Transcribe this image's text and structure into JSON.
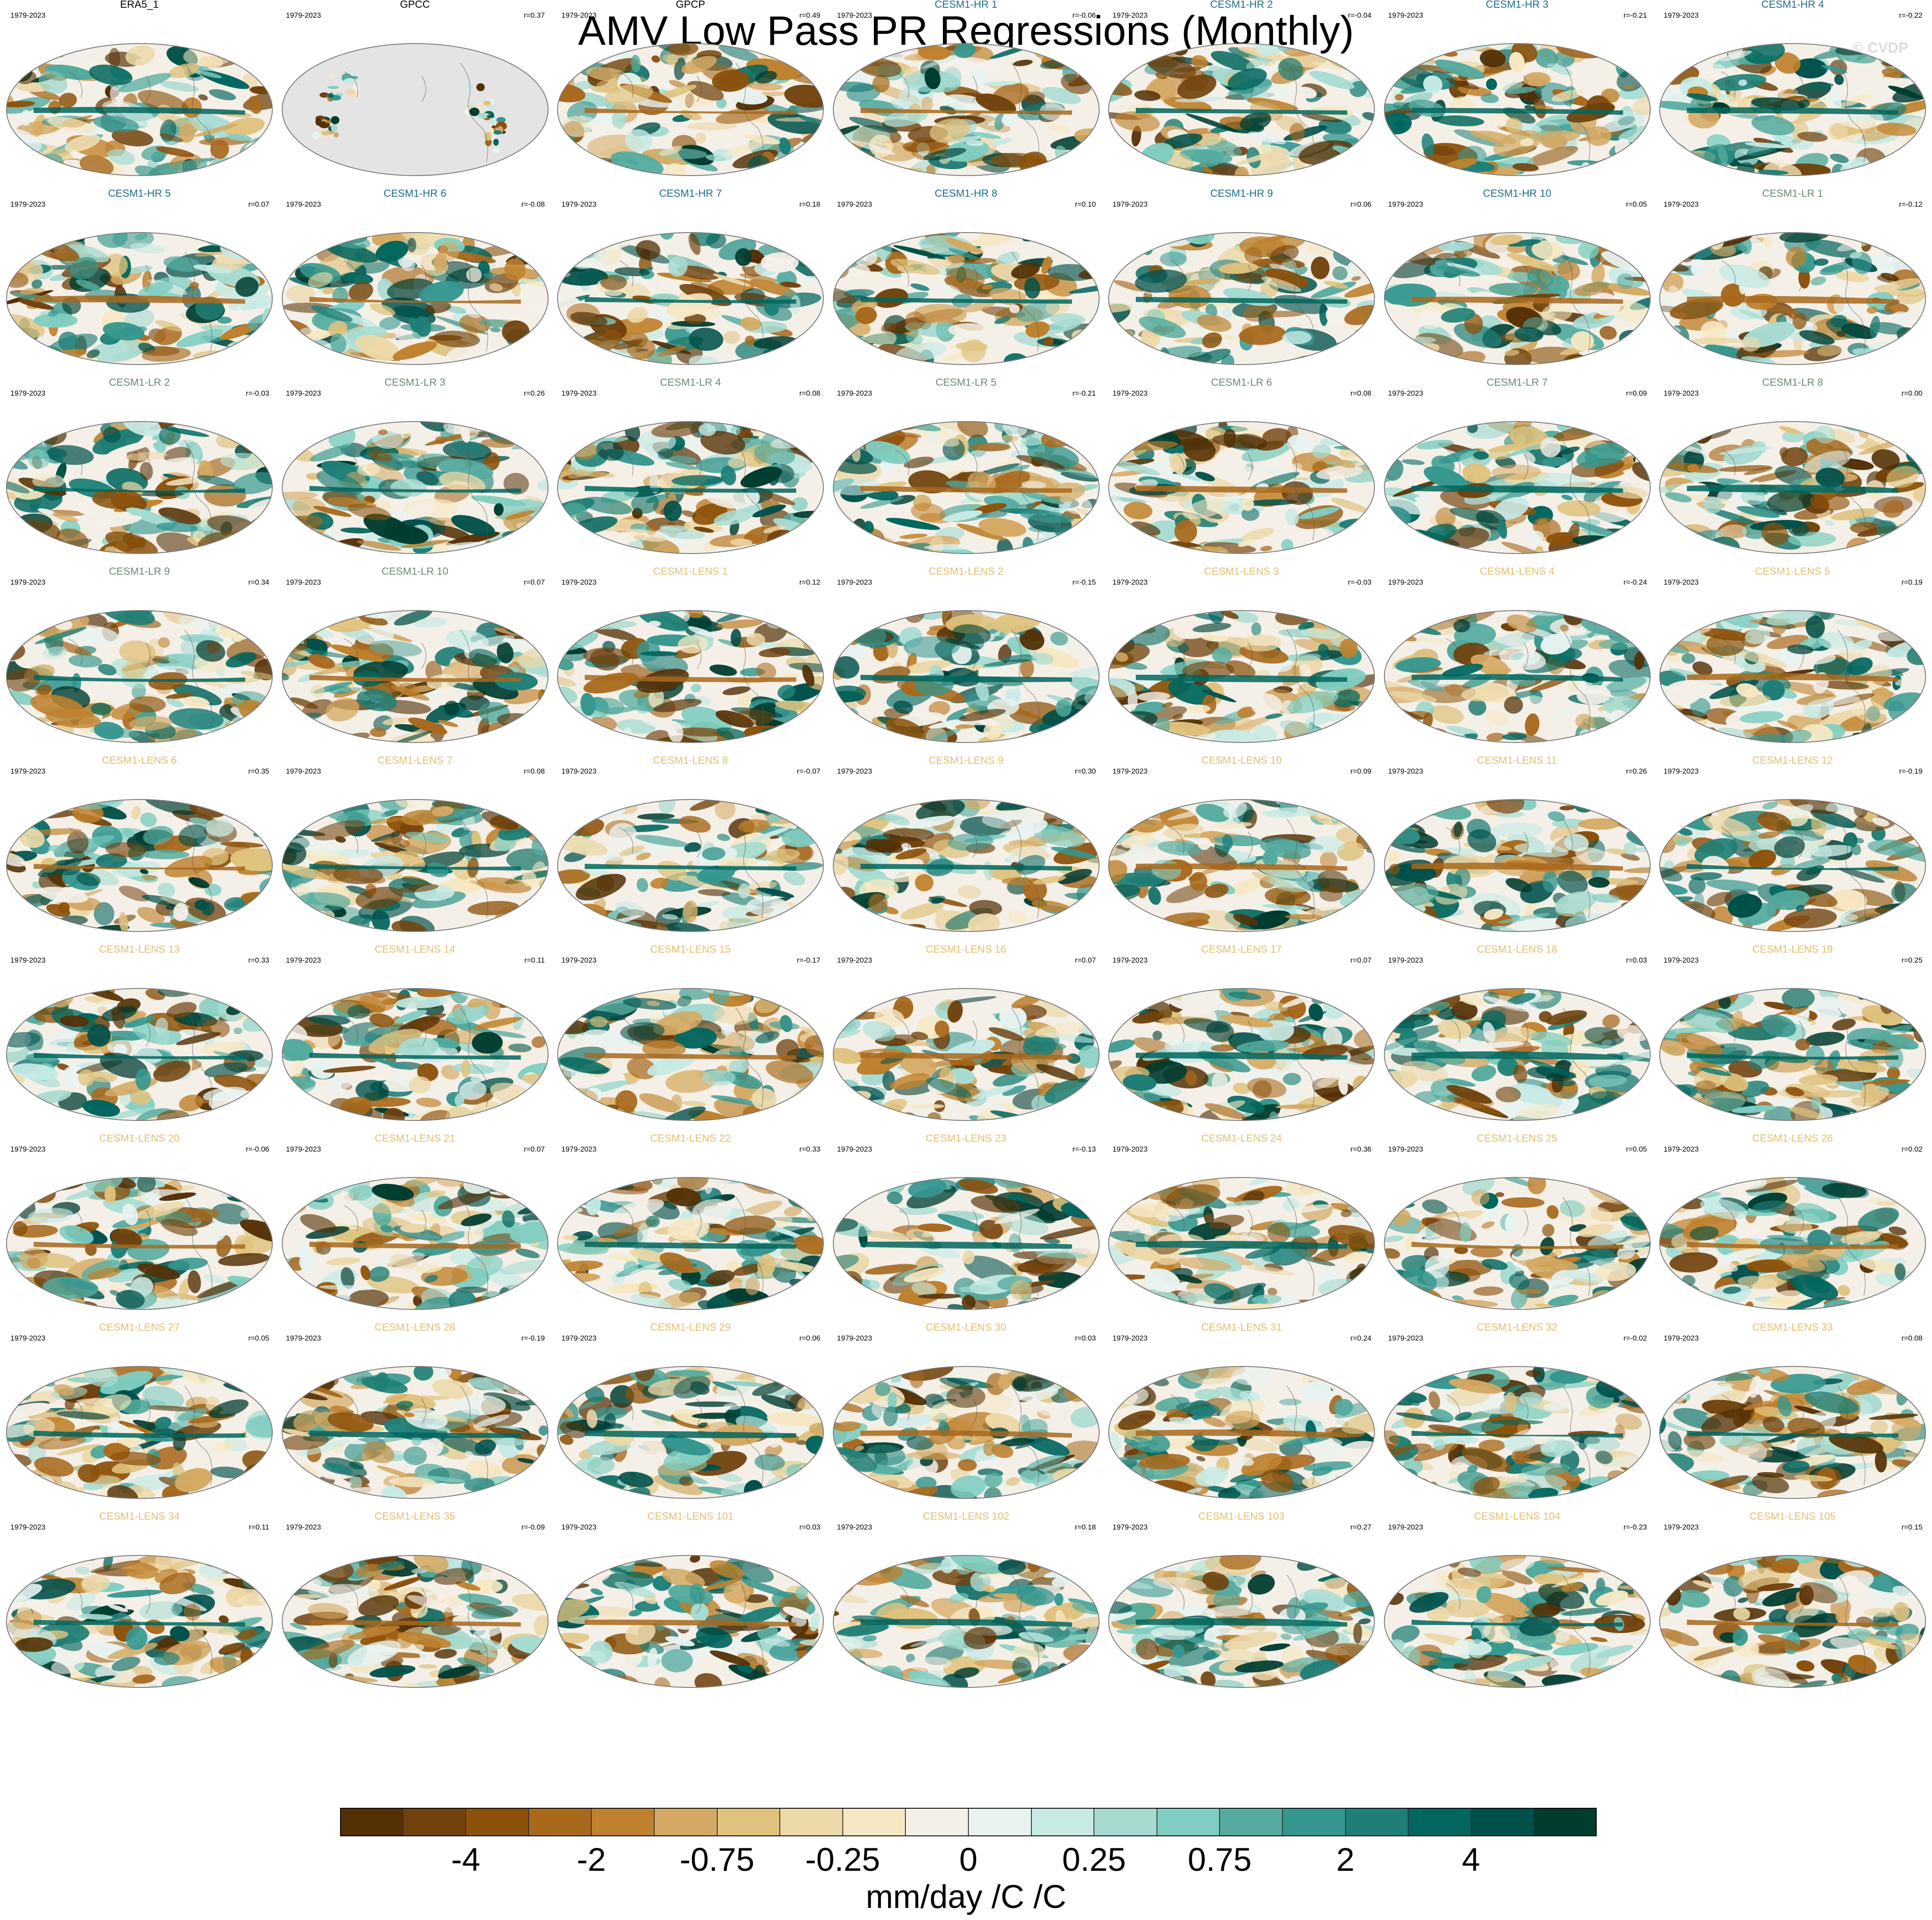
{
  "title": "AMV Low Pass PR Regressions (Monthly)",
  "copyright": "© CVDP",
  "period": "1979-2023",
  "colors": {
    "observations": "#000000",
    "cesm1_hr": "#1f6e86",
    "cesm1_lr": "#6a8a74",
    "cesm1_lens": "#e0c070",
    "land_mask": "#e4e4e4"
  },
  "colorbar": {
    "colors": [
      "#543005",
      "#71420d",
      "#8c510a",
      "#a8691d",
      "#bf812d",
      "#d4a963",
      "#dfc27d",
      "#ecd8a8",
      "#f6e8c3",
      "#f4f0e8",
      "#e8f3f1",
      "#c7eae5",
      "#a6dbd2",
      "#80cdc1",
      "#54aa9e",
      "#35978f",
      "#1f7f77",
      "#01665e",
      "#00504a",
      "#003c30"
    ],
    "tick_labels": [
      "-4",
      "-2",
      "-0.75",
      "-0.25",
      "0",
      "0.25",
      "0.75",
      "2",
      "4"
    ],
    "units": "mm/day /C /C"
  },
  "panels": [
    {
      "name": "ERA5_1",
      "group": "obs",
      "r": ""
    },
    {
      "name": "GPCC",
      "group": "obs",
      "r": "r=0.37"
    },
    {
      "name": "GPCP",
      "group": "obs",
      "r": "r=0.49"
    },
    {
      "name": "CESM1-HR 1",
      "group": "hr",
      "r": "r=-0.06"
    },
    {
      "name": "CESM1-HR 2",
      "group": "hr",
      "r": "r=-0.04"
    },
    {
      "name": "CESM1-HR 3",
      "group": "hr",
      "r": "r=-0.21"
    },
    {
      "name": "CESM1-HR 4",
      "group": "hr",
      "r": "r=-0.22"
    },
    {
      "name": "CESM1-HR 5",
      "group": "hr",
      "r": "r=0.07"
    },
    {
      "name": "CESM1-HR 6",
      "group": "hr",
      "r": "r=-0.08"
    },
    {
      "name": "CESM1-HR 7",
      "group": "hr",
      "r": "r=0.18"
    },
    {
      "name": "CESM1-HR 8",
      "group": "hr",
      "r": "r=0.10"
    },
    {
      "name": "CESM1-HR 9",
      "group": "hr",
      "r": "r=0.06"
    },
    {
      "name": "CESM1-HR 10",
      "group": "hr",
      "r": "r=0.05"
    },
    {
      "name": "CESM1-LR 1",
      "group": "lr",
      "r": "r=-0.12"
    },
    {
      "name": "CESM1-LR 2",
      "group": "lr",
      "r": "r=-0.03"
    },
    {
      "name": "CESM1-LR 3",
      "group": "lr",
      "r": "r=0.26"
    },
    {
      "name": "CESM1-LR 4",
      "group": "lr",
      "r": "r=0.08"
    },
    {
      "name": "CESM1-LR 5",
      "group": "lr",
      "r": "r=-0.21"
    },
    {
      "name": "CESM1-LR 6",
      "group": "lr",
      "r": "r=0.08"
    },
    {
      "name": "CESM1-LR 7",
      "group": "lr",
      "r": "r=0.09"
    },
    {
      "name": "CESM1-LR 8",
      "group": "lr",
      "r": "r=0.00"
    },
    {
      "name": "CESM1-LR 9",
      "group": "lr",
      "r": "r=0.34"
    },
    {
      "name": "CESM1-LR 10",
      "group": "lr",
      "r": "r=0.07"
    },
    {
      "name": "CESM1-LENS 1",
      "group": "lens",
      "r": "r=0.12"
    },
    {
      "name": "CESM1-LENS 2",
      "group": "lens",
      "r": "r=-0.15"
    },
    {
      "name": "CESM1-LENS 3",
      "group": "lens",
      "r": "r=-0.03"
    },
    {
      "name": "CESM1-LENS 4",
      "group": "lens",
      "r": "r=-0.24"
    },
    {
      "name": "CESM1-LENS 5",
      "group": "lens",
      "r": "r=0.19"
    },
    {
      "name": "CESM1-LENS 6",
      "group": "lens",
      "r": "r=0.35"
    },
    {
      "name": "CESM1-LENS 7",
      "group": "lens",
      "r": "r=0.08"
    },
    {
      "name": "CESM1-LENS 8",
      "group": "lens",
      "r": "r=-0.07"
    },
    {
      "name": "CESM1-LENS 9",
      "group": "lens",
      "r": "r=0.30"
    },
    {
      "name": "CESM1-LENS 10",
      "group": "lens",
      "r": "r=0.09"
    },
    {
      "name": "CESM1-LENS 11",
      "group": "lens",
      "r": "r=0.26"
    },
    {
      "name": "CESM1-LENS 12",
      "group": "lens",
      "r": "r=-0.19"
    },
    {
      "name": "CESM1-LENS 13",
      "group": "lens",
      "r": "r=0.33"
    },
    {
      "name": "CESM1-LENS 14",
      "group": "lens",
      "r": "r=0.11"
    },
    {
      "name": "CESM1-LENS 15",
      "group": "lens",
      "r": "r=-0.17"
    },
    {
      "name": "CESM1-LENS 16",
      "group": "lens",
      "r": "r=0.07"
    },
    {
      "name": "CESM1-LENS 17",
      "group": "lens",
      "r": "r=0.07"
    },
    {
      "name": "CESM1-LENS 18",
      "group": "lens",
      "r": "r=0.03"
    },
    {
      "name": "CESM1-LENS 19",
      "group": "lens",
      "r": "r=0.25"
    },
    {
      "name": "CESM1-LENS 20",
      "group": "lens",
      "r": "r=-0.06"
    },
    {
      "name": "CESM1-LENS 21",
      "group": "lens",
      "r": "r=0.07"
    },
    {
      "name": "CESM1-LENS 22",
      "group": "lens",
      "r": "r=0.33"
    },
    {
      "name": "CESM1-LENS 23",
      "group": "lens",
      "r": "r=-0.13"
    },
    {
      "name": "CESM1-LENS 24",
      "group": "lens",
      "r": "r=0.36"
    },
    {
      "name": "CESM1-LENS 25",
      "group": "lens",
      "r": "r=0.05"
    },
    {
      "name": "CESM1-LENS 26",
      "group": "lens",
      "r": "r=0.02"
    },
    {
      "name": "CESM1-LENS 27",
      "group": "lens",
      "r": "r=0.05"
    },
    {
      "name": "CESM1-LENS 28",
      "group": "lens",
      "r": "r=-0.19"
    },
    {
      "name": "CESM1-LENS 29",
      "group": "lens",
      "r": "r=0.06"
    },
    {
      "name": "CESM1-LENS 30",
      "group": "lens",
      "r": "r=0.03"
    },
    {
      "name": "CESM1-LENS 31",
      "group": "lens",
      "r": "r=0.24"
    },
    {
      "name": "CESM1-LENS 32",
      "group": "lens",
      "r": "r=-0.02"
    },
    {
      "name": "CESM1-LENS 33",
      "group": "lens",
      "r": "r=0.08"
    },
    {
      "name": "CESM1-LENS 34",
      "group": "lens",
      "r": "r=0.11"
    },
    {
      "name": "CESM1-LENS 35",
      "group": "lens",
      "r": "r=-0.09"
    },
    {
      "name": "CESM1-LENS 101",
      "group": "lens",
      "r": "r=0.03"
    },
    {
      "name": "CESM1-LENS 102",
      "group": "lens",
      "r": "r=0.18"
    },
    {
      "name": "CESM1-LENS 103",
      "group": "lens",
      "r": "r=0.27"
    },
    {
      "name": "CESM1-LENS 104",
      "group": "lens",
      "r": "r=-0.23"
    },
    {
      "name": "CESM1-LENS 105",
      "group": "lens",
      "r": "r=0.15"
    }
  ]
}
